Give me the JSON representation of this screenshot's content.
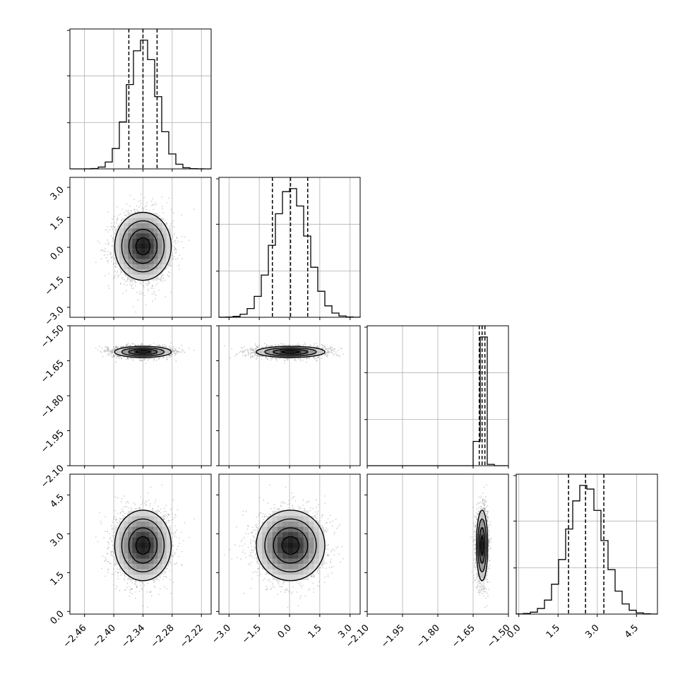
{
  "chart_data": {
    "type": "corner",
    "grid": true,
    "legend": "none",
    "colors": {
      "line": "#000000",
      "grid": "#b0b0b0",
      "points": "#9a9a9a"
    },
    "parameters": [
      {
        "index": 0,
        "range": [
          -2.49,
          -2.2
        ],
        "ticks": [
          -2.46,
          -2.4,
          -2.34,
          -2.28,
          -2.22
        ],
        "tick_labels": [
          "−2.46",
          "−2.40",
          "−2.34",
          "−2.28",
          "−2.22"
        ],
        "mean": -2.34,
        "std": 0.029,
        "quantiles": [
          -2.369,
          -2.34,
          -2.311
        ]
      },
      {
        "index": 1,
        "range": [
          -3.5,
          3.5
        ],
        "ticks": [
          -3.0,
          -1.5,
          0.0,
          1.5,
          3.0
        ],
        "tick_labels": [
          "−3.0",
          "−1.5",
          "0.0",
          "1.5",
          "3.0"
        ],
        "mean": 0.05,
        "std": 0.85,
        "quantiles": [
          -0.85,
          0.05,
          0.9
        ]
      },
      {
        "index": 2,
        "range": [
          -2.1,
          -1.5
        ],
        "ticks": [
          -2.1,
          -1.95,
          -1.8,
          -1.65,
          -1.5
        ],
        "tick_labels": [
          "−2.10",
          "−1.95",
          "−1.80",
          "−1.65",
          "−1.50"
        ],
        "mean": -1.612,
        "std": 0.012,
        "quantiles": [
          -1.624,
          -1.612,
          -1.6
        ]
      },
      {
        "index": 3,
        "range": [
          -0.1,
          5.3
        ],
        "ticks": [
          0.0,
          1.5,
          3.0,
          4.5
        ],
        "tick_labels": [
          "0.0",
          "1.5",
          "3.0",
          "4.5"
        ],
        "mean": 2.55,
        "std": 0.68,
        "quantiles": [
          1.9,
          2.55,
          3.25
        ]
      }
    ]
  }
}
